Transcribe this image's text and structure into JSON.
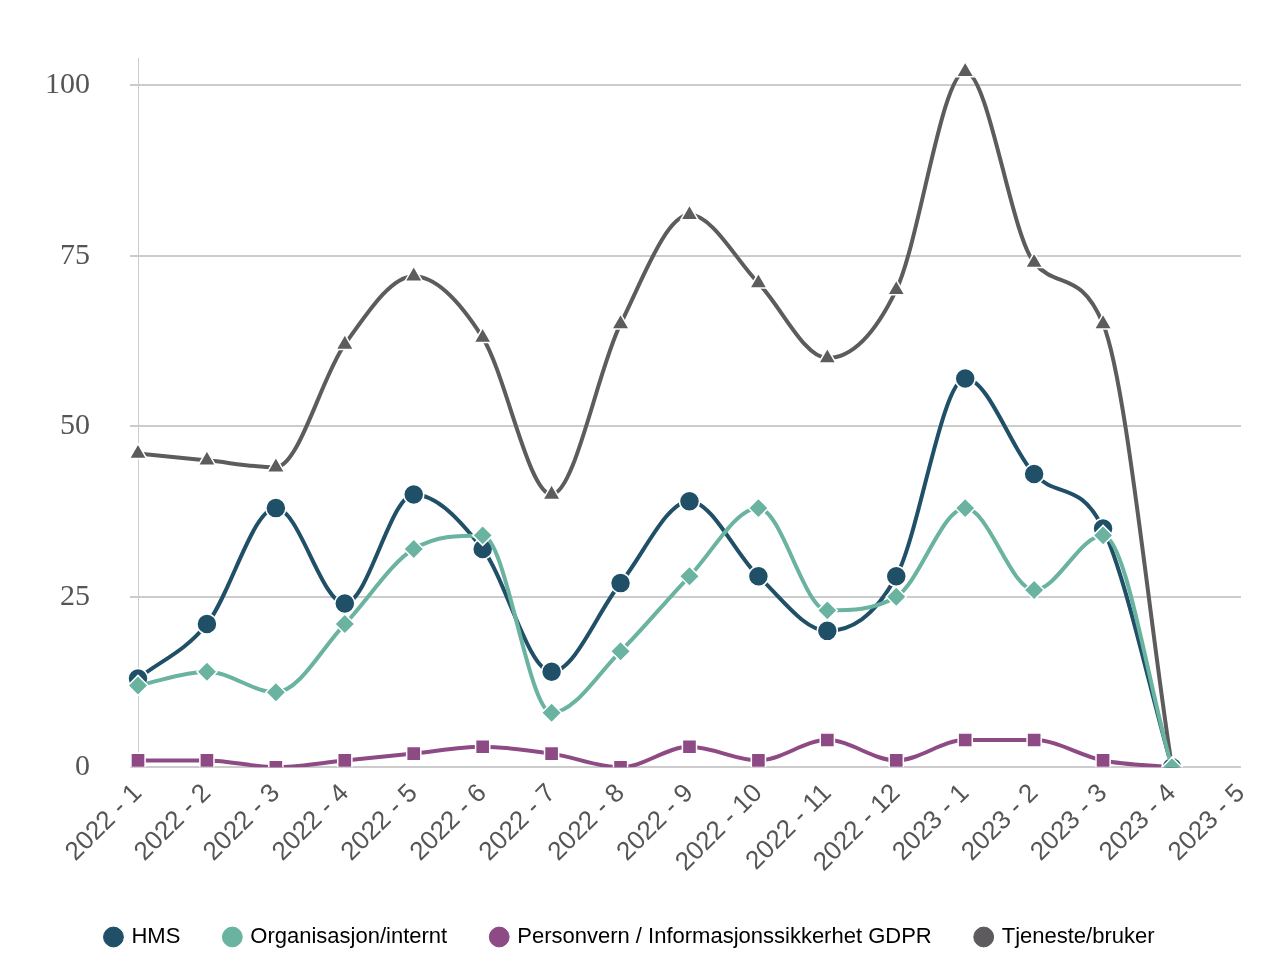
{
  "chart_data": {
    "type": "line",
    "categories": [
      "2022 - 1",
      "2022 - 2",
      "2022 - 3",
      "2022 - 4",
      "2022 - 5",
      "2022 - 6",
      "2022 - 7",
      "2022 - 8",
      "2022 - 9",
      "2022 - 10",
      "2022 - 11",
      "2022 - 12",
      "2023 - 1",
      "2023 - 2",
      "2023 - 3",
      "2023 - 4",
      "2023 - 5"
    ],
    "series": [
      {
        "name": "HMS",
        "color": "#1f5068",
        "marker": "circle",
        "values": [
          13,
          21,
          38,
          24,
          40,
          32,
          14,
          27,
          39,
          28,
          20,
          28,
          57,
          43,
          35,
          0,
          null
        ]
      },
      {
        "name": "Organisasjon/internt",
        "color": "#6ab3a0",
        "marker": "diamond",
        "values": [
          12,
          14,
          11,
          21,
          32,
          34,
          8,
          17,
          28,
          38,
          23,
          25,
          38,
          26,
          34,
          0,
          null
        ]
      },
      {
        "name": "Personvern / Informasjonssikkerhet GDPR",
        "color": "#8e4a85",
        "marker": "square",
        "values": [
          1,
          1,
          0,
          1,
          2,
          3,
          2,
          0,
          3,
          1,
          4,
          1,
          4,
          4,
          1,
          0,
          null
        ]
      },
      {
        "name": "Tjeneste/bruker",
        "color": "#5d5b5d",
        "marker": "triangle",
        "values": [
          46,
          45,
          44,
          62,
          72,
          63,
          40,
          65,
          81,
          71,
          60,
          70,
          102,
          74,
          65,
          0,
          null
        ]
      }
    ],
    "ylim": [
      0,
      104
    ],
    "yticks": [
      0,
      25,
      50,
      75,
      100
    ],
    "grid": "y",
    "legend": "bottom"
  }
}
